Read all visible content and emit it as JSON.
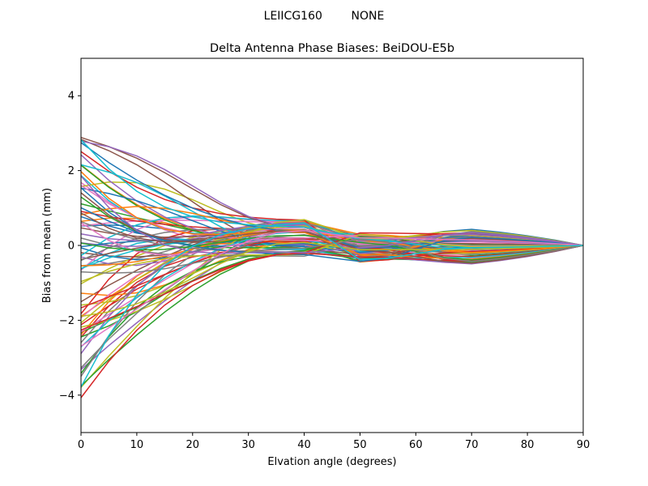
{
  "chart_data": {
    "type": "line",
    "suptitle": "LEIICG160        NONE",
    "title": "Delta Antenna Phase Biases: BeiDOU-E5b",
    "xlabel": "Elvation angle (degrees)",
    "ylabel": "Bias from mean (mm)",
    "xlim": [
      0,
      90
    ],
    "ylim": [
      -5,
      5
    ],
    "grid": false,
    "legend": "none",
    "x": [
      0,
      5,
      10,
      15,
      20,
      25,
      30,
      35,
      40,
      45,
      50,
      55,
      60,
      65,
      70,
      75,
      80,
      85,
      90
    ],
    "xticks": [
      "0",
      "10",
      "20",
      "30",
      "40",
      "50",
      "60",
      "70",
      "80",
      "90"
    ],
    "yticks": [
      "−4",
      "−2",
      "0",
      "2",
      "4"
    ],
    "series_count": 80,
    "start_range": [
      -4.1,
      2.95
    ],
    "mid_range_at_40": [
      -0.3,
      0.7
    ],
    "mid_range_at_50": [
      -0.45,
      0.35
    ],
    "late_range_at_70": [
      -0.55,
      0.5
    ],
    "end_value_at_90": 0,
    "colors": [
      "#1f77b4",
      "#ff7f0e",
      "#2ca02c",
      "#d62728",
      "#9467bd",
      "#8c564b",
      "#e377c2",
      "#7f7f7f",
      "#bcbd22",
      "#17becf"
    ]
  }
}
